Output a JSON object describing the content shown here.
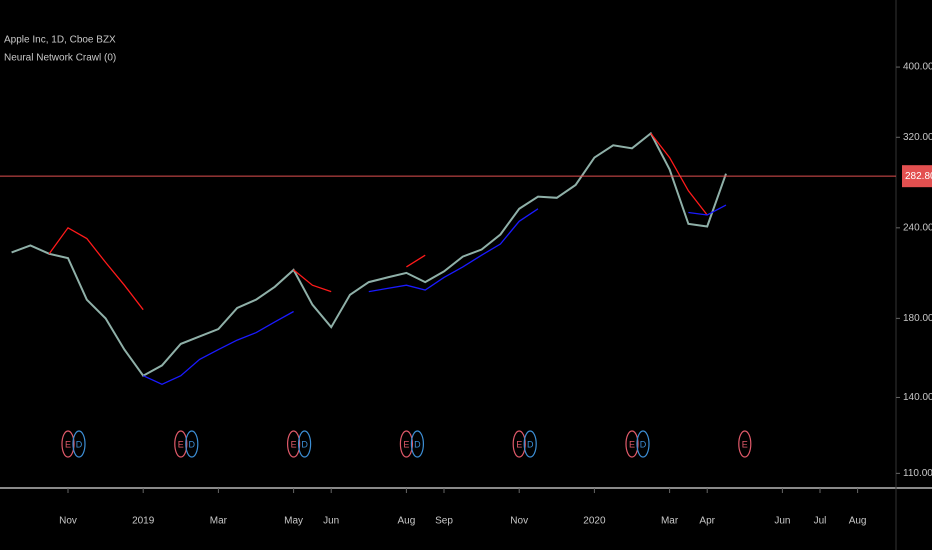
{
  "chart_data": {
    "type": "line",
    "title": "Apple Inc, 1D, Cboe BZX",
    "subtitle": "Neural Network Crawl (0)",
    "log_scale": true,
    "grid": false,
    "categories": [
      null,
      null,
      null,
      "Nov",
      null,
      null,
      null,
      "2019",
      null,
      null,
      null,
      "Mar",
      null,
      null,
      null,
      "May",
      null,
      "Jun",
      null,
      null,
      null,
      "Aug",
      null,
      "Sep",
      null,
      null,
      null,
      "Nov",
      null,
      null,
      null,
      "2020",
      null,
      null,
      null,
      "Mar",
      null,
      "Apr",
      null,
      null,
      null,
      "Jun",
      null,
      "Jul",
      null,
      "Aug",
      null
    ],
    "series": [
      {
        "color": "#8fb0a8",
        "values": [
          222,
          227,
          221,
          218,
          191,
          180,
          163,
          150,
          155,
          166,
          170,
          174,
          186,
          191,
          199,
          210,
          188,
          175,
          194,
          202,
          205,
          208,
          202,
          209,
          219,
          224,
          235,
          255,
          265,
          264,
          275,
          300,
          312,
          309,
          324,
          289,
          243,
          241,
          285,
          null,
          null,
          null,
          null,
          null,
          null,
          null,
          null
        ]
      },
      {
        "color": "#ff1a1a",
        "values": [
          null,
          null,
          221,
          240,
          232,
          215,
          200,
          185,
          null,
          null,
          null,
          null,
          null,
          null,
          null,
          210,
          200,
          196,
          null,
          null,
          null,
          212,
          220,
          null,
          null,
          null,
          null,
          null,
          null,
          null,
          null,
          null,
          null,
          null,
          324,
          300,
          270,
          250,
          null,
          null,
          null,
          null,
          null,
          null,
          null,
          null,
          null
        ]
      },
      {
        "color": "#1a1aff",
        "values": [
          null,
          null,
          null,
          null,
          null,
          null,
          null,
          150,
          146,
          150,
          158,
          163,
          168,
          172,
          178,
          184,
          null,
          null,
          null,
          196,
          198,
          200,
          197,
          205,
          212,
          220,
          228,
          245,
          255,
          null,
          null,
          null,
          null,
          null,
          null,
          null,
          252,
          250,
          258,
          null,
          null,
          null,
          null,
          null,
          null,
          null,
          null
        ]
      }
    ],
    "ylim": [
      105,
      495
    ],
    "yticks": [
      {
        "value": 110,
        "label": "110.00"
      },
      {
        "value": 140,
        "label": "140.00"
      },
      {
        "value": 180,
        "label": "180.00"
      },
      {
        "value": 240,
        "label": "240.00"
      },
      {
        "value": 320,
        "label": "320.00"
      },
      {
        "value": 400,
        "label": "400.00"
      }
    ],
    "last_price": {
      "value": 282.8,
      "label": "282.80"
    },
    "earnings": [
      null,
      null,
      null,
      "E",
      null,
      null,
      null,
      null,
      null,
      "E",
      null,
      null,
      null,
      null,
      null,
      "E",
      null,
      null,
      null,
      null,
      null,
      "E",
      null,
      null,
      null,
      null,
      null,
      "E",
      null,
      null,
      null,
      null,
      null,
      "E",
      null,
      null,
      null,
      null,
      null,
      "E",
      null,
      null,
      null,
      null,
      null,
      null,
      null
    ],
    "dividends": [
      null,
      null,
      null,
      "D",
      null,
      null,
      null,
      null,
      null,
      "D",
      null,
      null,
      null,
      null,
      null,
      "D",
      null,
      null,
      null,
      null,
      null,
      "D",
      null,
      null,
      null,
      null,
      null,
      "D",
      null,
      null,
      null,
      null,
      null,
      "D",
      null,
      null,
      null,
      null,
      null,
      null,
      null,
      null,
      null,
      null,
      null,
      null,
      null
    ]
  }
}
